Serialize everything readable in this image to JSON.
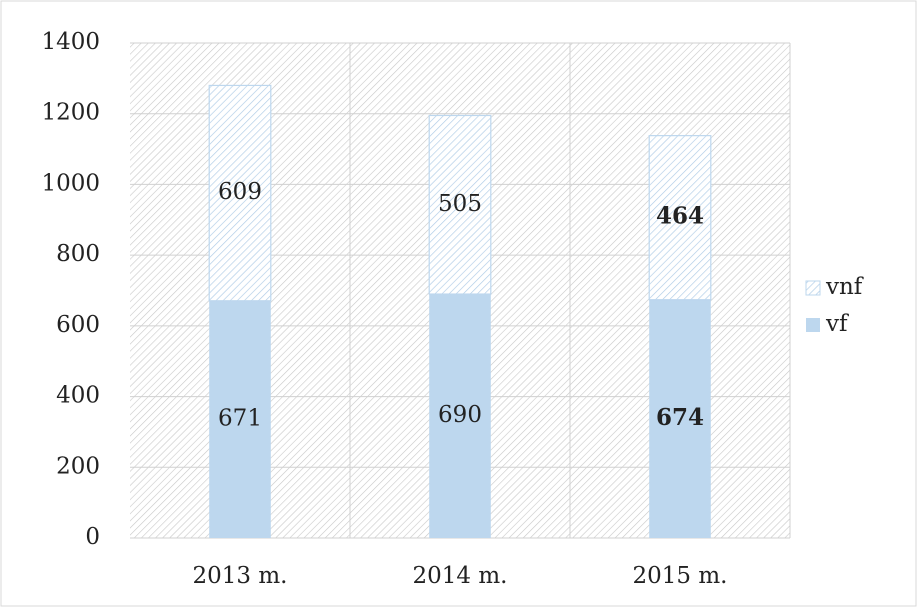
{
  "chart_data": {
    "type": "stacked_bar",
    "categories": [
      "2013 m.",
      "2014 m.",
      "2015 m."
    ],
    "series": [
      {
        "name": "vf",
        "color": "#bdd7ee",
        "values": [
          671,
          690,
          674
        ]
      },
      {
        "name": "vnf",
        "color": "#bdd7ee",
        "values": [
          609,
          505,
          464
        ]
      }
    ],
    "ylim": [
      0,
      1400
    ],
    "yticks": [
      0,
      200,
      400,
      600,
      800,
      1000,
      1200,
      1400
    ],
    "grid": true
  }
}
